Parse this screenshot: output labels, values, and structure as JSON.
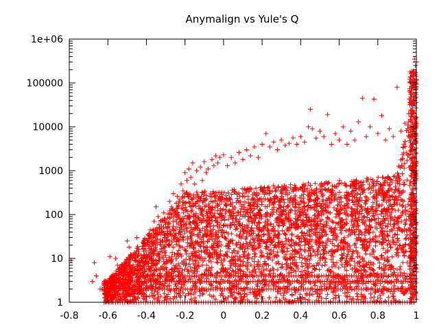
{
  "chart_data": {
    "type": "scatter",
    "title": "Anymalign vs Yule's Q",
    "xlabel": "",
    "ylabel": "",
    "xlim": [
      -0.8,
      1.0
    ],
    "ylim": [
      1,
      1000000
    ],
    "y_scale": "log",
    "grid": false,
    "legend": "none",
    "marker": "plus",
    "color": "#ff0000",
    "x_ticks": [
      -0.8,
      -0.6,
      -0.4,
      -0.2,
      0,
      0.2,
      0.4,
      0.6,
      0.8,
      1
    ],
    "x_tick_labels": [
      "-0.8",
      "-0.6",
      "-0.4",
      "-0.2",
      "0",
      "0.2",
      "0.4",
      "0.6",
      "0.8",
      "1"
    ],
    "y_ticks": [
      1,
      10,
      100,
      1000,
      10000,
      100000,
      1000000
    ],
    "y_tick_labels": [
      "1",
      "10",
      "100",
      "1000",
      "10000",
      "100000",
      "1e+06"
    ],
    "series": [
      {
        "points": [
          [
            -0.79,
            9
          ],
          [
            -0.68,
            3
          ],
          [
            -0.67,
            8
          ],
          [
            -0.66,
            4
          ],
          [
            -0.64,
            2
          ],
          [
            -0.62,
            2
          ],
          [
            -0.59,
            11
          ],
          [
            -0.58,
            4
          ],
          [
            -0.56,
            10
          ],
          [
            -0.55,
            7
          ],
          [
            -0.54,
            6
          ],
          [
            -0.52,
            3
          ],
          [
            -0.5,
            25
          ],
          [
            -0.49,
            18
          ],
          [
            -0.48,
            12
          ],
          [
            -0.46,
            6
          ],
          [
            -0.45,
            30
          ],
          [
            -0.44,
            16
          ],
          [
            -0.42,
            8
          ],
          [
            -0.41,
            20
          ],
          [
            -0.4,
            12
          ],
          [
            -0.38,
            45
          ],
          [
            -0.36,
            70
          ],
          [
            -0.35,
            150
          ],
          [
            -0.34,
            90
          ],
          [
            -0.32,
            40
          ],
          [
            -0.31,
            110
          ],
          [
            -0.3,
            60
          ],
          [
            -0.28,
            200
          ],
          [
            -0.27,
            150
          ],
          [
            -0.26,
            300
          ],
          [
            -0.25,
            120
          ],
          [
            -0.24,
            260
          ],
          [
            -0.22,
            500
          ],
          [
            -0.21,
            350
          ],
          [
            -0.2,
            900
          ],
          [
            -0.19,
            600
          ],
          [
            -0.18,
            1100
          ],
          [
            -0.17,
            700
          ],
          [
            -0.16,
            1500
          ],
          [
            -0.15,
            500
          ],
          [
            -0.14,
            1000
          ],
          [
            -0.12,
            1200
          ],
          [
            -0.11,
            600
          ],
          [
            -0.1,
            1600
          ],
          [
            -0.09,
            900
          ],
          [
            -0.08,
            1100
          ],
          [
            -0.06,
            1800
          ],
          [
            -0.05,
            1300
          ],
          [
            -0.04,
            2200
          ],
          [
            -0.03,
            1500
          ],
          [
            -0.02,
            2000
          ],
          [
            0.0,
            2300
          ],
          [
            0.02,
            1300
          ],
          [
            0.04,
            2000
          ],
          [
            0.06,
            1500
          ],
          [
            0.08,
            2600
          ],
          [
            0.1,
            1800
          ],
          [
            0.12,
            3000
          ],
          [
            0.14,
            2200
          ],
          [
            0.16,
            3500
          ],
          [
            0.18,
            2000
          ],
          [
            0.2,
            4000
          ],
          [
            0.22,
            7000
          ],
          [
            0.24,
            3500
          ],
          [
            0.26,
            4500
          ],
          [
            0.28,
            3000
          ],
          [
            0.3,
            5000
          ],
          [
            0.32,
            3800
          ],
          [
            0.34,
            4200
          ],
          [
            0.36,
            5600
          ],
          [
            0.38,
            4000
          ],
          [
            0.4,
            6000
          ],
          [
            0.42,
            4500
          ],
          [
            0.44,
            10000
          ],
          [
            0.45,
            25000
          ],
          [
            0.46,
            9000
          ],
          [
            0.48,
            5500
          ],
          [
            0.5,
            8000
          ],
          [
            0.52,
            6000
          ],
          [
            0.54,
            19000
          ],
          [
            0.56,
            4000
          ],
          [
            0.58,
            7000
          ],
          [
            0.6,
            5000
          ],
          [
            0.62,
            10000
          ],
          [
            0.64,
            4000
          ],
          [
            0.66,
            8000
          ],
          [
            0.68,
            5000
          ],
          [
            0.7,
            13000
          ],
          [
            0.72,
            45000
          ],
          [
            0.74,
            6000
          ],
          [
            0.76,
            10000
          ],
          [
            0.78,
            43000
          ],
          [
            0.8,
            7000
          ],
          [
            0.82,
            18000
          ],
          [
            0.84,
            5000
          ],
          [
            0.86,
            9000
          ],
          [
            0.88,
            6000
          ],
          [
            0.9,
            80000
          ],
          [
            0.92,
            8000
          ],
          [
            0.94,
            12000
          ],
          [
            0.96,
            20000
          ],
          [
            0.97,
            60000
          ],
          [
            0.98,
            150000
          ],
          [
            0.99,
            350000
          ],
          [
            0.995,
            250000
          ],
          [
            1.0,
            300000
          ],
          [
            1.0,
            120000
          ]
        ]
      }
    ]
  }
}
